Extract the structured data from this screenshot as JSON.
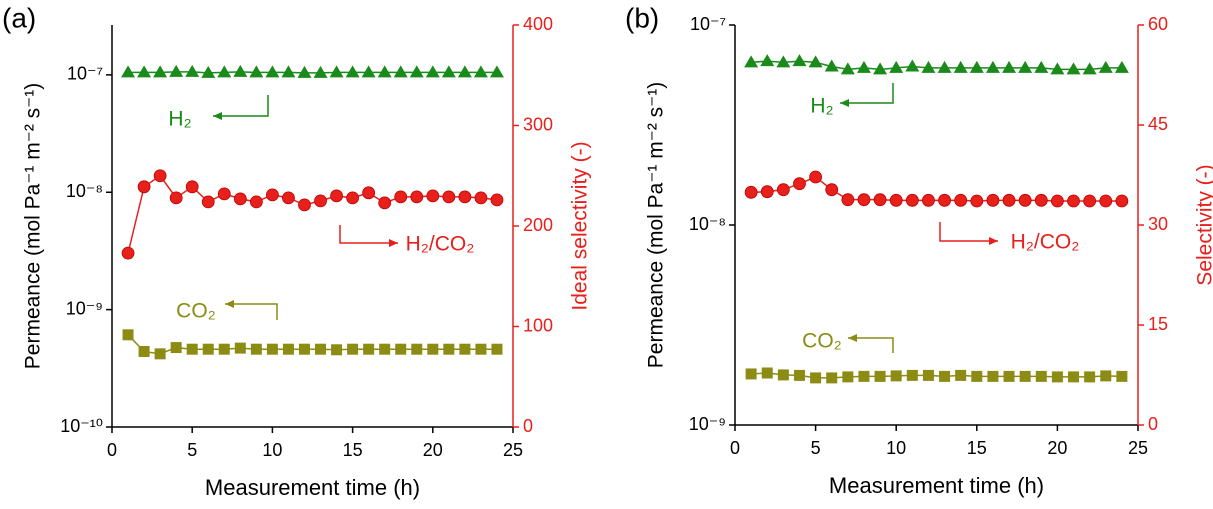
{
  "chart_data": [
    {
      "type": "line",
      "panel_label": "(a)",
      "x_label": "Measurement time (h)",
      "y_label": "Permeance (mol Pa⁻¹ m⁻² s⁻¹)",
      "y2_label": "Ideal selectivity (-)",
      "ylog": true,
      "x": [
        1,
        2,
        3,
        4,
        5,
        6,
        7,
        8,
        9,
        10,
        11,
        12,
        13,
        14,
        15,
        16,
        17,
        18,
        19,
        20,
        21,
        22,
        23,
        24
      ],
      "xlim": [
        0,
        25
      ],
      "xticks": [
        0,
        5,
        10,
        15,
        20,
        25
      ],
      "ylim": [
        1e-10,
        2.66e-07
      ],
      "yticks": [
        {
          "value": 1e-10,
          "label": "10⁻¹⁰"
        },
        {
          "value": 1e-09,
          "label": "10⁻⁹"
        },
        {
          "value": 1e-08,
          "label": "10⁻⁸"
        },
        {
          "value": 1e-07,
          "label": "10⁻⁷"
        }
      ],
      "y2lim": [
        0,
        400
      ],
      "y2ticks": [
        0,
        100,
        200,
        300,
        400
      ],
      "y2color": "#e8201c",
      "series": [
        {
          "name": "H₂",
          "color": "#1a8a1a",
          "marker": "triangle",
          "values": [
            1.05e-07,
            1.05e-07,
            1.05e-07,
            1.06e-07,
            1.06e-07,
            1.04e-07,
            1.05e-07,
            1.06e-07,
            1.05e-07,
            1.05e-07,
            1.05e-07,
            1.04e-07,
            1.04e-07,
            1.05e-07,
            1.05e-07,
            1.05e-07,
            1.05e-07,
            1.05e-07,
            1.05e-07,
            1.05e-07,
            1.05e-07,
            1.05e-07,
            1.05e-07,
            1.05e-07
          ]
        },
        {
          "name": "H₂/CO₂",
          "color": "#e8201c",
          "marker": "circle",
          "axis": "y2",
          "values": [
            173,
            239,
            250,
            228,
            239,
            224,
            232,
            227,
            224,
            231,
            228,
            221,
            225,
            230,
            228,
            233,
            223,
            229,
            229,
            230,
            229,
            229,
            228,
            226
          ]
        },
        {
          "name": "CO₂",
          "color": "#8c8c14",
          "marker": "square",
          "values": [
            6.1e-10,
            4.4e-10,
            4.2e-10,
            4.75e-10,
            4.6e-10,
            4.6e-10,
            4.6e-10,
            4.7e-10,
            4.6e-10,
            4.6e-10,
            4.6e-10,
            4.6e-10,
            4.6e-10,
            4.55e-10,
            4.6e-10,
            4.6e-10,
            4.6e-10,
            4.6e-10,
            4.6e-10,
            4.6e-10,
            4.6e-10,
            4.6e-10,
            4.6e-10,
            4.6e-10
          ]
        }
      ]
    },
    {
      "type": "line",
      "panel_label": "(b)",
      "x_label": "Measurement time (h)",
      "y_label": "Permeance (mol Pa⁻¹ m⁻² s⁻¹)",
      "y2_label": "Selectivity (-)",
      "ylog": true,
      "x": [
        1,
        2,
        3,
        4,
        5,
        6,
        7,
        8,
        9,
        10,
        11,
        12,
        13,
        14,
        15,
        16,
        17,
        18,
        19,
        20,
        21,
        22,
        23,
        24
      ],
      "xlim": [
        0,
        25
      ],
      "xticks": [
        0,
        5,
        10,
        15,
        20,
        25
      ],
      "ylim": [
        1e-09,
        1e-07
      ],
      "yticks": [
        {
          "value": 1e-09,
          "label": "10⁻⁹"
        },
        {
          "value": 1e-08,
          "label": "10⁻⁸"
        },
        {
          "value": 1e-07,
          "label": "10⁻⁷"
        }
      ],
      "y2lim": [
        0,
        60
      ],
      "y2ticks": [
        0,
        15,
        30,
        45,
        60
      ],
      "y2color": "#e8201c",
      "series": [
        {
          "name": "H₂",
          "color": "#1a8a1a",
          "marker": "triangle",
          "values": [
            6.5e-08,
            6.6e-08,
            6.5e-08,
            6.6e-08,
            6.5e-08,
            6.2e-08,
            6e-08,
            6.1e-08,
            6e-08,
            6.1e-08,
            6.2e-08,
            6.1e-08,
            6.1e-08,
            6.1e-08,
            6.1e-08,
            6.1e-08,
            6.1e-08,
            6.1e-08,
            6.1e-08,
            6e-08,
            6e-08,
            6e-08,
            6.1e-08,
            6.1e-08
          ]
        },
        {
          "name": "H₂/CO₂",
          "color": "#e8201c",
          "marker": "circle",
          "axis": "y2",
          "values": [
            34.9,
            35.0,
            35.3,
            36.2,
            37.2,
            35.3,
            33.8,
            33.8,
            33.8,
            33.7,
            33.7,
            33.7,
            33.7,
            33.7,
            33.6,
            33.7,
            33.7,
            33.7,
            33.7,
            33.6,
            33.6,
            33.6,
            33.6,
            33.6
          ]
        },
        {
          "name": "CO₂",
          "color": "#8c8c14",
          "marker": "square",
          "values": [
            1.8e-09,
            1.82e-09,
            1.78e-09,
            1.77e-09,
            1.72e-09,
            1.72e-09,
            1.74e-09,
            1.75e-09,
            1.75e-09,
            1.76e-09,
            1.77e-09,
            1.77e-09,
            1.75e-09,
            1.77e-09,
            1.75e-09,
            1.75e-09,
            1.75e-09,
            1.75e-09,
            1.75e-09,
            1.74e-09,
            1.74e-09,
            1.74e-09,
            1.76e-09,
            1.75e-09
          ]
        }
      ]
    }
  ]
}
